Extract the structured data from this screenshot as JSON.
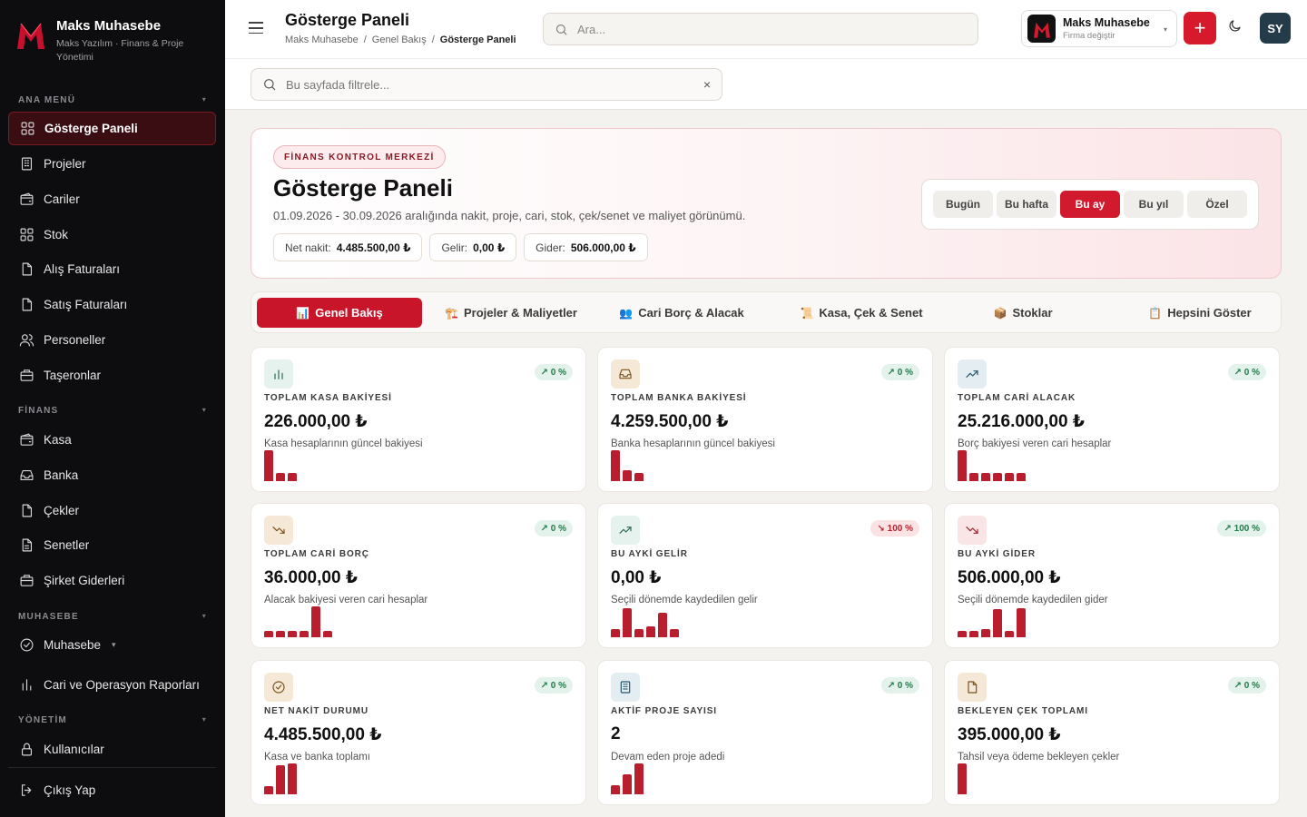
{
  "brand": {
    "name": "Maks Muhasebe",
    "subtitle": "Maks Yazılım · Finans & Proje Yönetimi"
  },
  "sidebar": {
    "sections": [
      {
        "title": "ANA MENÜ"
      },
      {
        "title": "FİNANS"
      },
      {
        "title": "MUHASEBE"
      },
      {
        "title": "YÖNETİM"
      }
    ],
    "items": [
      {
        "label": "Gösterge Paneli",
        "icon": "grid-icon"
      },
      {
        "label": "Projeler",
        "icon": "building-icon"
      },
      {
        "label": "Cariler",
        "icon": "wallet-icon"
      },
      {
        "label": "Stok",
        "icon": "grid-icon"
      },
      {
        "label": "Alış Faturaları",
        "icon": "file-icon"
      },
      {
        "label": "Satış Faturaları",
        "icon": "file-icon"
      },
      {
        "label": "Personeller",
        "icon": "users-icon"
      },
      {
        "label": "Taşeronlar",
        "icon": "briefcase-icon"
      },
      {
        "label": "Kasa",
        "icon": "wallet-icon"
      },
      {
        "label": "Banka",
        "icon": "inbox-icon"
      },
      {
        "label": "Çekler",
        "icon": "file-icon"
      },
      {
        "label": "Senetler",
        "icon": "file-text-icon"
      },
      {
        "label": "Şirket Giderleri",
        "icon": "briefcase-icon"
      },
      {
        "label": "Muhasebe",
        "icon": "check-circle-icon"
      },
      {
        "label": "Cari ve Operasyon Raporları",
        "icon": "bar-chart-icon"
      },
      {
        "label": "Kullanıcılar",
        "icon": "lock-icon"
      },
      {
        "label": "Çıkış Yap",
        "icon": "logout-icon"
      }
    ]
  },
  "header": {
    "title": "Gösterge Paneli",
    "breadcrumb": [
      "Maks Muhasebe",
      "Genel Bakış",
      "Gösterge Paneli"
    ],
    "breadcrumb_sep": "/",
    "search_placeholder": "Ara...",
    "company_name": "Maks Muhasebe",
    "company_sub": "Firma değiştir",
    "add_label": "+",
    "avatar": "SY"
  },
  "filter": {
    "placeholder": "Bu sayfada filtrele...",
    "clear": "×"
  },
  "hero": {
    "badge": "FİNANS KONTROL MERKEZİ",
    "title": "Gösterge Paneli",
    "description": "01.09.2026 - 30.09.2026 aralığında nakit, proje, cari, stok, çek/senet ve maliyet görünümü.",
    "stats": [
      {
        "label": "Net nakit:",
        "value": "4.485.500,00 ₺"
      },
      {
        "label": "Gelir:",
        "value": "0,00 ₺"
      },
      {
        "label": "Gider:",
        "value": "506.000,00 ₺"
      }
    ],
    "ranges": [
      "Bugün",
      "Bu hafta",
      "Bu ay",
      "Bu yıl",
      "Özel"
    ],
    "active_range": "Bu ay"
  },
  "tabs": [
    {
      "icon": "📊",
      "label": "Genel Bakış",
      "active": true
    },
    {
      "icon": "🏗️",
      "label": "Projeler & Maliyetler"
    },
    {
      "icon": "👥",
      "label": "Cari Borç & Alacak"
    },
    {
      "icon": "📜",
      "label": "Kasa, Çek & Senet"
    },
    {
      "icon": "📦",
      "label": "Stoklar"
    },
    {
      "icon": "📋",
      "label": "Hepsini Göster"
    }
  ],
  "cards": [
    {
      "label": "TOPLAM KASA BAKİYESİ",
      "value": "226.000,00 ₺",
      "desc": "Kasa hesaplarının güncel bakiyesi",
      "trend": "↗ 0 %",
      "trend_dir": "up",
      "icon": "bar-chart-icon",
      "icon_bg": "#e6f2ee",
      "icon_color": "#2f6b55",
      "spark": [
        1.0,
        0.25,
        0.25
      ]
    },
    {
      "label": "TOPLAM BANKA BAKİYESİ",
      "value": "4.259.500,00 ₺",
      "desc": "Banka hesaplarının güncel bakiyesi",
      "trend": "↗ 0 %",
      "trend_dir": "up",
      "icon": "inbox-icon",
      "icon_bg": "#f6e8d6",
      "icon_color": "#7a5320",
      "spark": [
        1.0,
        0.35,
        0.25
      ]
    },
    {
      "label": "TOPLAM CARİ ALACAK",
      "value": "25.216.000,00 ₺",
      "desc": "Borç bakiyesi veren cari hesaplar",
      "trend": "↗ 0 %",
      "trend_dir": "up",
      "icon": "trending-up-icon",
      "icon_bg": "#e4eef2",
      "icon_color": "#24566b",
      "spark": [
        1.0,
        0.25,
        0.25,
        0.25,
        0.25,
        0.25
      ]
    },
    {
      "label": "TOPLAM CARİ BORÇ",
      "value": "36.000,00 ₺",
      "desc": "Alacak bakiyesi veren cari hesaplar",
      "trend": "↗ 0 %",
      "trend_dir": "up",
      "icon": "trending-down-icon",
      "icon_bg": "#f6e8d6",
      "icon_color": "#7a5320",
      "spark": [
        0.2,
        0.2,
        0.2,
        0.2,
        1.0,
        0.2
      ]
    },
    {
      "label": "BU AYKİ GELİR",
      "value": "0,00 ₺",
      "desc": "Seçili dönemde kaydedilen gelir",
      "trend": "↘ 100 %",
      "trend_dir": "down",
      "icon": "trending-up-icon",
      "icon_bg": "#e6f2ee",
      "icon_color": "#2f6b55",
      "spark": [
        0.25,
        0.95,
        0.25,
        0.35,
        0.8,
        0.25
      ]
    },
    {
      "label": "BU AYKİ GİDER",
      "value": "506.000,00 ₺",
      "desc": "Seçili dönemde kaydedilen gider",
      "trend": "↗ 100 %",
      "trend_dir": "up",
      "icon": "trending-down-icon",
      "icon_bg": "#f9e4e6",
      "icon_color": "#a1232f",
      "spark": [
        0.2,
        0.2,
        0.25,
        0.9,
        0.2,
        0.95
      ]
    },
    {
      "label": "NET NAKİT DURUMU",
      "value": "4.485.500,00 ₺",
      "desc": "Kasa ve banka toplamı",
      "trend": "↗ 0 %",
      "trend_dir": "up",
      "icon": "check-circle-icon",
      "icon_bg": "#f6e8d6",
      "icon_color": "#7a5320",
      "spark": [
        0.25,
        0.95,
        1.0
      ]
    },
    {
      "label": "AKTİF PROJE SAYISI",
      "value": "2",
      "desc": "Devam eden proje adedi",
      "trend": "↗ 0 %",
      "trend_dir": "up",
      "icon": "building-icon",
      "icon_bg": "#e4eef2",
      "icon_color": "#24566b",
      "spark": [
        0.3,
        0.65,
        1.0
      ]
    },
    {
      "label": "BEKLEYEN ÇEK TOPLAMI",
      "value": "395.000,00 ₺",
      "desc": "Tahsil veya ödeme bekleyen çekler",
      "trend": "↗ 0 %",
      "trend_dir": "up",
      "icon": "file-icon",
      "icon_bg": "#f6e8d6",
      "icon_color": "#7a5320",
      "spark": [
        1.0
      ]
    }
  ]
}
